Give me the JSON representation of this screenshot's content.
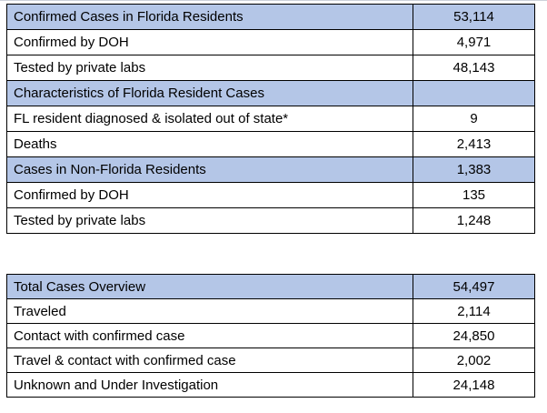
{
  "colors": {
    "header_fill": "#b4c6e7",
    "border": "#000000",
    "text": "#000000",
    "background": "#ffffff",
    "top_hairline": "#cdd2da"
  },
  "chart_data": [
    {
      "type": "table",
      "columns": [
        "label",
        "value"
      ],
      "legend_position": "none",
      "grid": "full-borders",
      "rows": [
        {
          "label": "Confirmed Cases in Florida Residents",
          "value": "53,114",
          "header": true
        },
        {
          "label": "Confirmed by DOH",
          "value": "4,971",
          "header": false
        },
        {
          "label": "Tested by private labs",
          "value": "48,143",
          "header": false
        },
        {
          "label": "Characteristics of Florida Resident Cases",
          "value": "",
          "header": true
        },
        {
          "label": "FL resident diagnosed & isolated out of state*",
          "value": "9",
          "header": false
        },
        {
          "label": "Deaths",
          "value": "2,413",
          "header": false
        },
        {
          "label": "Cases in Non-Florida Residents",
          "value": "1,383",
          "header": true
        },
        {
          "label": "Confirmed by DOH",
          "value": "135",
          "header": false
        },
        {
          "label": "Tested by private labs",
          "value": "1,248",
          "header": false
        }
      ]
    },
    {
      "type": "table",
      "columns": [
        "label",
        "value"
      ],
      "legend_position": "none",
      "grid": "full-borders",
      "rows": [
        {
          "label": "Total Cases Overview",
          "value": "54,497",
          "header": true
        },
        {
          "label": "Traveled",
          "value": "2,114",
          "header": false
        },
        {
          "label": "Contact with confirmed case",
          "value": "24,850",
          "header": false
        },
        {
          "label": "Travel & contact with confirmed case",
          "value": "2,002",
          "header": false
        },
        {
          "label": "Unknown and Under Investigation",
          "value": "24,148",
          "header": false
        }
      ]
    }
  ]
}
